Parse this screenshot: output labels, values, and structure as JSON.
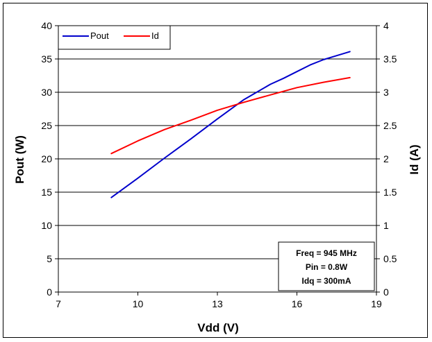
{
  "chart_data": {
    "type": "line",
    "xlabel": "Vdd (V)",
    "ylabel_left": "Pout (W)",
    "ylabel_right": "Id (A)",
    "xlim": [
      7,
      19
    ],
    "ylim_left": [
      0,
      40
    ],
    "ylim_right": [
      0,
      4
    ],
    "x_ticks": [
      "7",
      "10",
      "13",
      "16",
      "19"
    ],
    "y_left_ticks": [
      "0",
      "5",
      "10",
      "15",
      "20",
      "25",
      "30",
      "35",
      "40"
    ],
    "y_right_ticks": [
      "0",
      "0.5",
      "1",
      "1.5",
      "2",
      "2.5",
      "3",
      "3.5",
      "4"
    ],
    "grid": "horizontal",
    "legend_position": "top-left",
    "series": [
      {
        "name": "Pout",
        "axis": "left",
        "color": "#0000cc",
        "x": [
          9,
          10,
          11,
          12,
          13,
          14,
          15,
          15.5,
          16,
          16.5,
          17,
          17.5,
          18
        ],
        "y": [
          14.2,
          17.1,
          20.1,
          23.0,
          26.0,
          28.9,
          31.2,
          32.1,
          33.1,
          34.1,
          34.9,
          35.5,
          36.1
        ]
      },
      {
        "name": "Id",
        "axis": "right",
        "color": "#ff0000",
        "x": [
          9,
          10,
          11,
          12,
          13,
          14,
          15,
          16,
          17,
          18
        ],
        "y": [
          2.08,
          2.27,
          2.44,
          2.58,
          2.73,
          2.85,
          2.96,
          3.07,
          3.15,
          3.22
        ]
      }
    ],
    "annotation": [
      "Freq = 945 MHz",
      "Pin = 0.8W",
      "Idq = 300mA"
    ]
  }
}
